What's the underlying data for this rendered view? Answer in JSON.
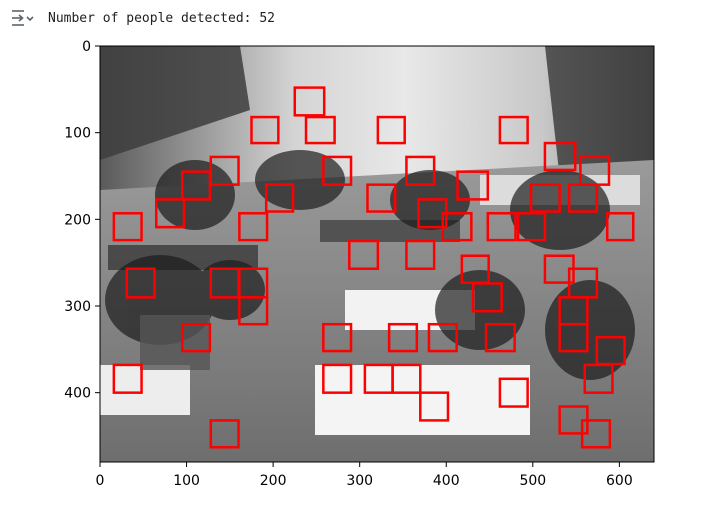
{
  "cell_output": {
    "text": "Number of people detected: 52",
    "icon": "collapse-output-icon"
  },
  "plot": {
    "type": "image-with-detections",
    "image_description": "grayscale classroom photo of seated people",
    "x_range": [
      0,
      640
    ],
    "y_range": [
      0,
      480
    ],
    "x_ticks": [
      0,
      100,
      200,
      300,
      400,
      500,
      600
    ],
    "y_ticks": [
      0,
      100,
      200,
      300,
      400
    ],
    "box_color": "#ff0000",
    "boxes": [
      [
        225,
        48,
        259,
        80
      ],
      [
        175,
        82,
        206,
        112
      ],
      [
        238,
        82,
        271,
        112
      ],
      [
        321,
        82,
        352,
        112
      ],
      [
        462,
        82,
        494,
        112
      ],
      [
        514,
        112,
        549,
        143
      ],
      [
        128,
        128,
        160,
        160
      ],
      [
        258,
        128,
        290,
        160
      ],
      [
        354,
        128,
        386,
        160
      ],
      [
        95,
        145,
        127,
        177
      ],
      [
        413,
        145,
        448,
        177
      ],
      [
        555,
        128,
        588,
        160
      ],
      [
        65,
        177,
        97,
        209
      ],
      [
        309,
        160,
        341,
        191
      ],
      [
        192,
        160,
        223,
        191
      ],
      [
        498,
        160,
        531,
        191
      ],
      [
        542,
        160,
        574,
        191
      ],
      [
        16,
        193,
        48,
        224
      ],
      [
        161,
        193,
        193,
        224
      ],
      [
        368,
        177,
        400,
        209
      ],
      [
        396,
        193,
        429,
        224
      ],
      [
        448,
        193,
        480,
        224
      ],
      [
        483,
        193,
        514,
        224
      ],
      [
        586,
        193,
        616,
        224
      ],
      [
        288,
        225,
        321,
        257
      ],
      [
        354,
        225,
        386,
        257
      ],
      [
        418,
        242,
        449,
        273
      ],
      [
        514,
        242,
        547,
        273
      ],
      [
        31,
        257,
        63,
        290
      ],
      [
        128,
        257,
        160,
        290
      ],
      [
        161,
        257,
        193,
        290
      ],
      [
        542,
        257,
        574,
        290
      ],
      [
        431,
        274,
        464,
        306
      ],
      [
        531,
        290,
        563,
        321
      ],
      [
        161,
        290,
        193,
        321
      ],
      [
        95,
        321,
        127,
        352
      ],
      [
        258,
        321,
        290,
        352
      ],
      [
        334,
        321,
        366,
        352
      ],
      [
        380,
        321,
        412,
        352
      ],
      [
        446,
        321,
        479,
        352
      ],
      [
        531,
        321,
        563,
        352
      ],
      [
        574,
        336,
        606,
        367
      ],
      [
        16,
        368,
        48,
        400
      ],
      [
        258,
        368,
        290,
        400
      ],
      [
        306,
        368,
        338,
        400
      ],
      [
        338,
        368,
        370,
        400
      ],
      [
        560,
        368,
        592,
        400
      ],
      [
        462,
        384,
        494,
        416
      ],
      [
        370,
        400,
        402,
        432
      ],
      [
        531,
        416,
        563,
        447
      ],
      [
        557,
        432,
        589,
        463
      ],
      [
        128,
        432,
        160,
        463
      ]
    ]
  }
}
